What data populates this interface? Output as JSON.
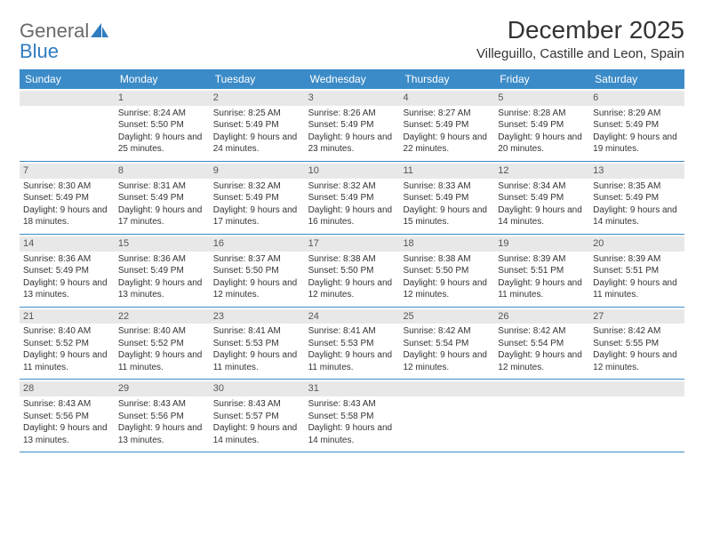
{
  "brand": {
    "part1": "General",
    "part2": "Blue"
  },
  "title": "December 2025",
  "location": "Villeguillo, Castille and Leon, Spain",
  "colors": {
    "header_bg": "#3b8bc8",
    "header_text": "#ffffff",
    "daynum_bg": "#e8e8e8",
    "brand_grey": "#6a6a6a",
    "brand_blue": "#2e7cc0",
    "row_border": "#3b8bc8"
  },
  "day_names": [
    "Sunday",
    "Monday",
    "Tuesday",
    "Wednesday",
    "Thursday",
    "Friday",
    "Saturday"
  ],
  "weeks": [
    [
      {
        "num": "",
        "sunrise": "",
        "sunset": "",
        "daylight": ""
      },
      {
        "num": "1",
        "sunrise": "Sunrise: 8:24 AM",
        "sunset": "Sunset: 5:50 PM",
        "daylight": "Daylight: 9 hours and 25 minutes."
      },
      {
        "num": "2",
        "sunrise": "Sunrise: 8:25 AM",
        "sunset": "Sunset: 5:49 PM",
        "daylight": "Daylight: 9 hours and 24 minutes."
      },
      {
        "num": "3",
        "sunrise": "Sunrise: 8:26 AM",
        "sunset": "Sunset: 5:49 PM",
        "daylight": "Daylight: 9 hours and 23 minutes."
      },
      {
        "num": "4",
        "sunrise": "Sunrise: 8:27 AM",
        "sunset": "Sunset: 5:49 PM",
        "daylight": "Daylight: 9 hours and 22 minutes."
      },
      {
        "num": "5",
        "sunrise": "Sunrise: 8:28 AM",
        "sunset": "Sunset: 5:49 PM",
        "daylight": "Daylight: 9 hours and 20 minutes."
      },
      {
        "num": "6",
        "sunrise": "Sunrise: 8:29 AM",
        "sunset": "Sunset: 5:49 PM",
        "daylight": "Daylight: 9 hours and 19 minutes."
      }
    ],
    [
      {
        "num": "7",
        "sunrise": "Sunrise: 8:30 AM",
        "sunset": "Sunset: 5:49 PM",
        "daylight": "Daylight: 9 hours and 18 minutes."
      },
      {
        "num": "8",
        "sunrise": "Sunrise: 8:31 AM",
        "sunset": "Sunset: 5:49 PM",
        "daylight": "Daylight: 9 hours and 17 minutes."
      },
      {
        "num": "9",
        "sunrise": "Sunrise: 8:32 AM",
        "sunset": "Sunset: 5:49 PM",
        "daylight": "Daylight: 9 hours and 17 minutes."
      },
      {
        "num": "10",
        "sunrise": "Sunrise: 8:32 AM",
        "sunset": "Sunset: 5:49 PM",
        "daylight": "Daylight: 9 hours and 16 minutes."
      },
      {
        "num": "11",
        "sunrise": "Sunrise: 8:33 AM",
        "sunset": "Sunset: 5:49 PM",
        "daylight": "Daylight: 9 hours and 15 minutes."
      },
      {
        "num": "12",
        "sunrise": "Sunrise: 8:34 AM",
        "sunset": "Sunset: 5:49 PM",
        "daylight": "Daylight: 9 hours and 14 minutes."
      },
      {
        "num": "13",
        "sunrise": "Sunrise: 8:35 AM",
        "sunset": "Sunset: 5:49 PM",
        "daylight": "Daylight: 9 hours and 14 minutes."
      }
    ],
    [
      {
        "num": "14",
        "sunrise": "Sunrise: 8:36 AM",
        "sunset": "Sunset: 5:49 PM",
        "daylight": "Daylight: 9 hours and 13 minutes."
      },
      {
        "num": "15",
        "sunrise": "Sunrise: 8:36 AM",
        "sunset": "Sunset: 5:49 PM",
        "daylight": "Daylight: 9 hours and 13 minutes."
      },
      {
        "num": "16",
        "sunrise": "Sunrise: 8:37 AM",
        "sunset": "Sunset: 5:50 PM",
        "daylight": "Daylight: 9 hours and 12 minutes."
      },
      {
        "num": "17",
        "sunrise": "Sunrise: 8:38 AM",
        "sunset": "Sunset: 5:50 PM",
        "daylight": "Daylight: 9 hours and 12 minutes."
      },
      {
        "num": "18",
        "sunrise": "Sunrise: 8:38 AM",
        "sunset": "Sunset: 5:50 PM",
        "daylight": "Daylight: 9 hours and 12 minutes."
      },
      {
        "num": "19",
        "sunrise": "Sunrise: 8:39 AM",
        "sunset": "Sunset: 5:51 PM",
        "daylight": "Daylight: 9 hours and 11 minutes."
      },
      {
        "num": "20",
        "sunrise": "Sunrise: 8:39 AM",
        "sunset": "Sunset: 5:51 PM",
        "daylight": "Daylight: 9 hours and 11 minutes."
      }
    ],
    [
      {
        "num": "21",
        "sunrise": "Sunrise: 8:40 AM",
        "sunset": "Sunset: 5:52 PM",
        "daylight": "Daylight: 9 hours and 11 minutes."
      },
      {
        "num": "22",
        "sunrise": "Sunrise: 8:40 AM",
        "sunset": "Sunset: 5:52 PM",
        "daylight": "Daylight: 9 hours and 11 minutes."
      },
      {
        "num": "23",
        "sunrise": "Sunrise: 8:41 AM",
        "sunset": "Sunset: 5:53 PM",
        "daylight": "Daylight: 9 hours and 11 minutes."
      },
      {
        "num": "24",
        "sunrise": "Sunrise: 8:41 AM",
        "sunset": "Sunset: 5:53 PM",
        "daylight": "Daylight: 9 hours and 11 minutes."
      },
      {
        "num": "25",
        "sunrise": "Sunrise: 8:42 AM",
        "sunset": "Sunset: 5:54 PM",
        "daylight": "Daylight: 9 hours and 12 minutes."
      },
      {
        "num": "26",
        "sunrise": "Sunrise: 8:42 AM",
        "sunset": "Sunset: 5:54 PM",
        "daylight": "Daylight: 9 hours and 12 minutes."
      },
      {
        "num": "27",
        "sunrise": "Sunrise: 8:42 AM",
        "sunset": "Sunset: 5:55 PM",
        "daylight": "Daylight: 9 hours and 12 minutes."
      }
    ],
    [
      {
        "num": "28",
        "sunrise": "Sunrise: 8:43 AM",
        "sunset": "Sunset: 5:56 PM",
        "daylight": "Daylight: 9 hours and 13 minutes."
      },
      {
        "num": "29",
        "sunrise": "Sunrise: 8:43 AM",
        "sunset": "Sunset: 5:56 PM",
        "daylight": "Daylight: 9 hours and 13 minutes."
      },
      {
        "num": "30",
        "sunrise": "Sunrise: 8:43 AM",
        "sunset": "Sunset: 5:57 PM",
        "daylight": "Daylight: 9 hours and 14 minutes."
      },
      {
        "num": "31",
        "sunrise": "Sunrise: 8:43 AM",
        "sunset": "Sunset: 5:58 PM",
        "daylight": "Daylight: 9 hours and 14 minutes."
      },
      {
        "num": "",
        "sunrise": "",
        "sunset": "",
        "daylight": ""
      },
      {
        "num": "",
        "sunrise": "",
        "sunset": "",
        "daylight": ""
      },
      {
        "num": "",
        "sunrise": "",
        "sunset": "",
        "daylight": ""
      }
    ]
  ]
}
